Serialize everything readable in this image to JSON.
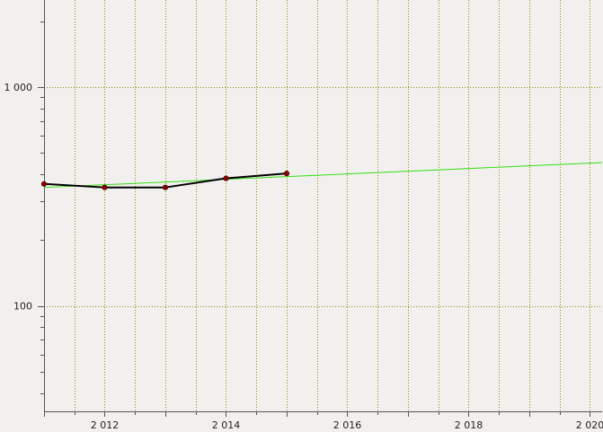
{
  "chart_data": {
    "type": "line",
    "title": "",
    "xlabel": "",
    "ylabel": "",
    "x_scale": "linear",
    "y_scale": "log",
    "xlim": [
      2011,
      2020.2
    ],
    "ylim": [
      33,
      2500
    ],
    "grid": true,
    "x_major_ticks": [
      2012,
      2014,
      2016,
      2018,
      2020
    ],
    "x_tick_labels": [
      "2 012",
      "2 014",
      "2 016",
      "2 018",
      "2 020"
    ],
    "y_major_ticks": [
      100,
      1000
    ],
    "y_tick_labels": [
      "100",
      "1 000"
    ],
    "series": [
      {
        "kind": "data",
        "x": [
          2011,
          2012,
          2013,
          2014,
          2015
        ],
        "y": [
          361,
          348,
          348,
          383,
          403
        ],
        "color": "#000000",
        "marker_color": "#8b0000"
      },
      {
        "kind": "trend",
        "x": [
          2011,
          2020.2
        ],
        "y": [
          348,
          452
        ],
        "color": "#33dd11"
      }
    ],
    "colors": {
      "background": "#f2f0ee",
      "grid": "#8a8a00",
      "axis": "#555555"
    }
  }
}
